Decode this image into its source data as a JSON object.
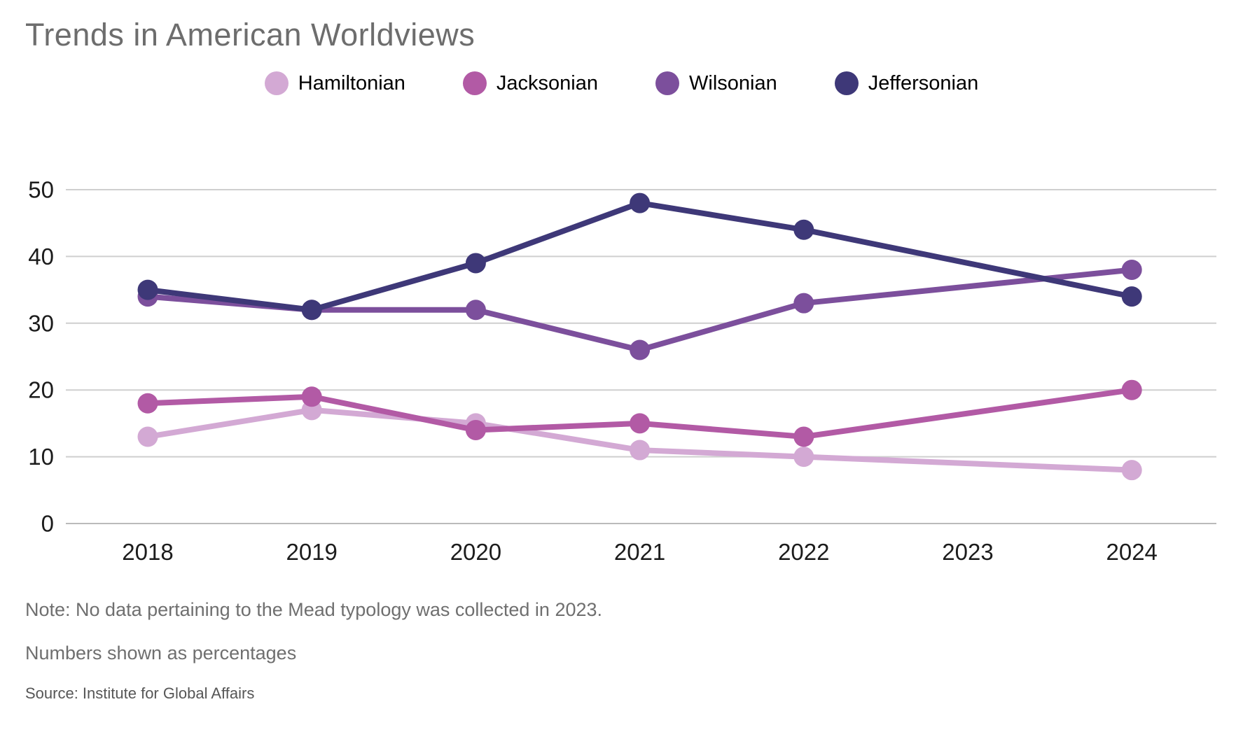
{
  "title": "Trends in American Worldviews",
  "legend": [
    {
      "label": "Hamiltonian",
      "color": "#d3a9d4"
    },
    {
      "label": "Jacksonian",
      "color": "#b25aa5"
    },
    {
      "label": "Wilsonian",
      "color": "#7c4f9c"
    },
    {
      "label": "Jeffersonian",
      "color": "#3e3878"
    }
  ],
  "chart_data": {
    "type": "line",
    "title": "Trends in American Worldviews",
    "x": [
      "2018",
      "2019",
      "2020",
      "2021",
      "2022",
      "2023",
      "2024"
    ],
    "series": [
      {
        "name": "Hamiltonian",
        "color": "#d3a9d4",
        "values": [
          13,
          17,
          15,
          11,
          10,
          null,
          8
        ]
      },
      {
        "name": "Jacksonian",
        "color": "#b25aa5",
        "values": [
          18,
          19,
          14,
          15,
          13,
          null,
          20
        ]
      },
      {
        "name": "Wilsonian",
        "color": "#7c4f9c",
        "values": [
          34,
          32,
          32,
          26,
          33,
          null,
          38
        ]
      },
      {
        "name": "Jeffersonian",
        "color": "#3e3878",
        "values": [
          35,
          32,
          39,
          48,
          44,
          null,
          34
        ]
      }
    ],
    "xlabel": "",
    "ylabel": "",
    "ylim": [
      0,
      50
    ],
    "yticks": [
      0,
      10,
      20,
      30,
      40,
      50
    ],
    "grid": true,
    "legend_position": "top",
    "missing_data_note": "No data collected in 2023; lines connect 2022 directly to 2024"
  },
  "colors": {
    "gridline": "#cfcfcf",
    "zero_line": "#bababa",
    "tick_text": "#1c1c1c",
    "title_text": "#6d6d6d",
    "note_text": "#6f6f6f"
  },
  "notes": {
    "note1": "Note: No data pertaining to the Mead typology was collected in 2023.",
    "note2": "Numbers shown as percentages",
    "source": "Source: Institute for Global Affairs"
  }
}
